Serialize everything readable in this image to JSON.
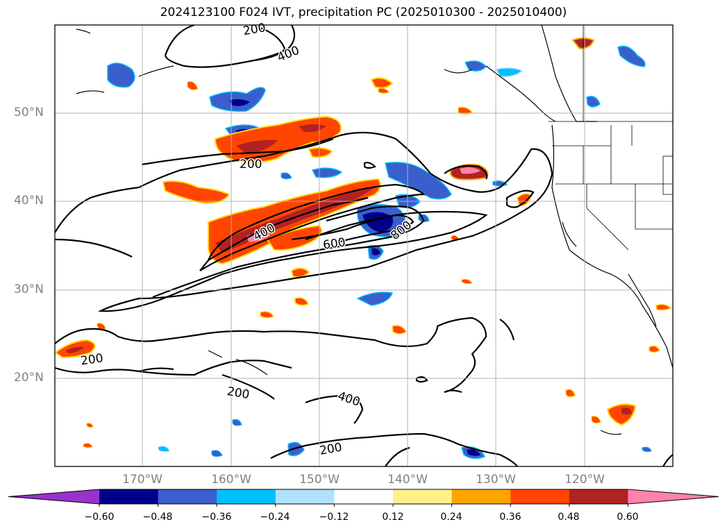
{
  "title": "2024123100 F024 IVT, precipitation PC (2025010300 - 2025010400)",
  "lat_labels": [
    "50°N",
    "40°N",
    "30°N",
    "20°N"
  ],
  "lon_labels": [
    "170°W",
    "160°W",
    "150°W",
    "140°W",
    "130°W",
    "120°W"
  ],
  "contour_labels": [
    "200",
    "400",
    "200",
    "400",
    "600",
    "800",
    "200",
    "200",
    "400",
    "200"
  ],
  "colorbar": {
    "ticks": [
      "−0.60",
      "−0.48",
      "−0.36",
      "−0.24",
      "−0.12",
      "0.12",
      "0.24",
      "0.36",
      "0.48",
      "0.60"
    ],
    "colors": [
      "#9932cc",
      "#00008b",
      "#3a5fcd",
      "#00bfff",
      "#b0e2ff",
      "#ffffff",
      "#fff08a",
      "#ffa500",
      "#ff4500",
      "#b22222",
      "#ff82ab"
    ]
  }
}
